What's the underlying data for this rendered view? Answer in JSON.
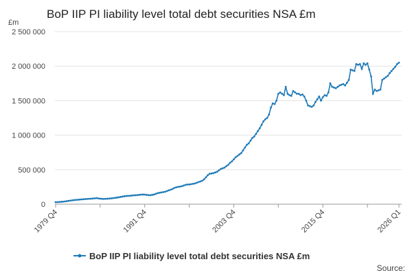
{
  "chart_data": {
    "type": "line",
    "title": "BoP IIP PI liability level total debt securities NSA £m",
    "y_label": "£m",
    "source": "Source:",
    "categories": [
      "1979 Q4",
      null,
      null,
      null,
      null,
      null,
      null,
      null,
      null,
      null,
      null,
      null,
      null,
      null,
      null,
      null,
      null,
      null,
      null,
      null,
      null,
      null,
      null,
      null,
      null,
      null,
      null,
      null,
      null,
      null,
      null,
      null,
      null,
      null,
      null,
      null,
      null,
      null,
      null,
      null,
      null,
      null,
      null,
      null,
      null,
      null,
      null,
      null,
      "1991 Q4",
      null,
      null,
      null,
      null,
      null,
      null,
      null,
      null,
      null,
      null,
      null,
      null,
      null,
      null,
      null,
      null,
      null,
      null,
      null,
      null,
      null,
      null,
      null,
      null,
      null,
      null,
      null,
      null,
      null,
      null,
      null,
      null,
      null,
      null,
      null,
      null,
      null,
      null,
      null,
      null,
      null,
      null,
      null,
      null,
      null,
      null,
      null,
      "2003 Q4",
      null,
      null,
      null,
      null,
      null,
      null,
      null,
      null,
      null,
      null,
      null,
      null,
      null,
      null,
      null,
      null,
      null,
      null,
      null,
      null,
      null,
      null,
      null,
      null,
      null,
      null,
      null,
      null,
      null,
      null,
      null,
      null,
      null,
      null,
      null,
      null,
      null,
      null,
      null,
      null,
      null,
      null,
      null,
      null,
      null,
      null,
      null,
      "2015 Q4",
      null,
      null,
      null,
      null,
      null,
      null,
      null,
      null,
      null,
      null,
      null,
      null,
      null,
      null,
      null,
      null,
      null,
      null,
      null,
      null,
      null,
      null,
      null,
      null,
      null,
      null,
      null,
      null,
      null,
      null,
      null,
      null,
      null,
      null,
      null,
      null,
      null,
      null,
      null,
      null,
      "2026 Q1"
    ],
    "series": [
      {
        "name": "BoP IIP PI liability level total debt securities NSA £m",
        "color": "#1f7ab8",
        "values": [
          30000,
          30000,
          32000,
          34000,
          36000,
          40000,
          44000,
          48000,
          52000,
          56000,
          60000,
          62000,
          65000,
          67000,
          70000,
          72000,
          74000,
          76000,
          78000,
          80000,
          82000,
          85000,
          88000,
          85000,
          80000,
          78000,
          76000,
          78000,
          80000,
          82000,
          85000,
          88000,
          92000,
          95000,
          100000,
          105000,
          110000,
          115000,
          118000,
          120000,
          122000,
          125000,
          128000,
          130000,
          132000,
          135000,
          138000,
          140000,
          138000,
          135000,
          132000,
          130000,
          135000,
          140000,
          150000,
          160000,
          165000,
          170000,
          175000,
          180000,
          190000,
          200000,
          210000,
          220000,
          235000,
          245000,
          250000,
          255000,
          260000,
          270000,
          280000,
          285000,
          285000,
          290000,
          295000,
          300000,
          310000,
          320000,
          330000,
          340000,
          360000,
          390000,
          420000,
          440000,
          445000,
          450000,
          460000,
          470000,
          490000,
          510000,
          520000,
          530000,
          550000,
          570000,
          600000,
          620000,
          650000,
          680000,
          700000,
          720000,
          740000,
          780000,
          820000,
          860000,
          880000,
          920000,
          960000,
          980000,
          1020000,
          1060000,
          1100000,
          1150000,
          1200000,
          1230000,
          1250000,
          1300000,
          1400000,
          1460000,
          1450000,
          1500000,
          1600000,
          1620000,
          1600000,
          1580000,
          1700000,
          1600000,
          1580000,
          1570000,
          1640000,
          1620000,
          1600000,
          1600000,
          1580000,
          1590000,
          1560000,
          1500000,
          1430000,
          1420000,
          1410000,
          1430000,
          1480000,
          1520000,
          1560000,
          1500000,
          1550000,
          1580000,
          1570000,
          1620000,
          1750000,
          1700000,
          1690000,
          1680000,
          1700000,
          1720000,
          1730000,
          1740000,
          1720000,
          1760000,
          1800000,
          1950000,
          1940000,
          1930000,
          2030000,
          2020000,
          2030000,
          1960000,
          2040000,
          2020000,
          2040000,
          1950000,
          1850000,
          1600000,
          1660000,
          1640000,
          1650000,
          1660000,
          1800000,
          1820000,
          1840000,
          1860000,
          1900000,
          1930000,
          1960000,
          1990000,
          2030000,
          2050000
        ]
      }
    ],
    "ylim": [
      0,
      2500000
    ],
    "yticks": [
      0,
      {
        "value": 500000,
        "label": "500 000"
      },
      {
        "value": 1000000,
        "label": "1 000 000"
      },
      {
        "value": 1500000,
        "label": "1 500 000"
      },
      {
        "value": 2000000,
        "label": "2 000 000"
      },
      {
        "value": 2500000,
        "label": "2 500 000"
      }
    ],
    "grid": true
  }
}
